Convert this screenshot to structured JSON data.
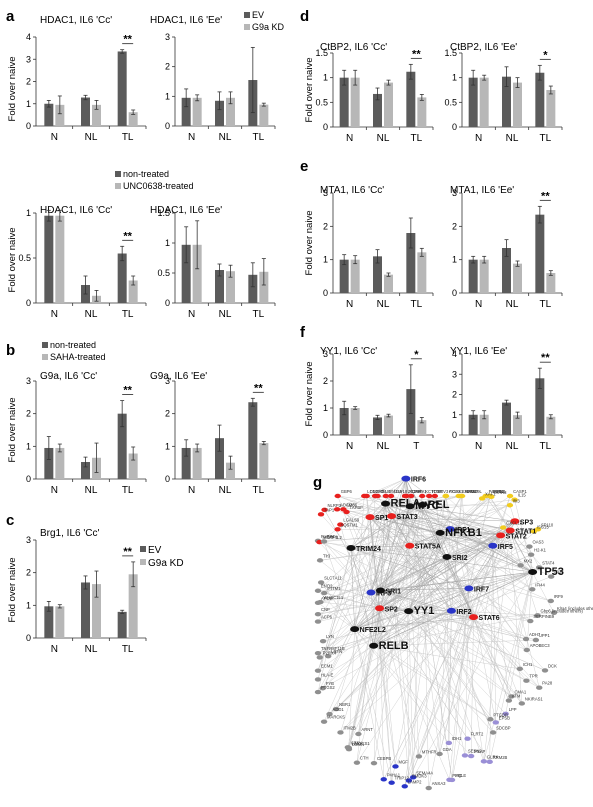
{
  "panel_letters": [
    "a",
    "b",
    "c",
    "d",
    "e",
    "f",
    "g"
  ],
  "legends": {
    "a_top": [
      "EV",
      "G9a KD"
    ],
    "a_mid": [
      "non-treated",
      "UNC0638-treated"
    ],
    "b": [
      "non-treated",
      "SAHA-treated"
    ],
    "c": [
      "EV",
      "G9a KD"
    ]
  },
  "colors": {
    "dark": "#5b5b5b",
    "light": "#b7b7b7",
    "axis": "#333333",
    "net_red": "#e8201e",
    "net_yellow": "#f2cc1e",
    "net_blue": "#2a35c8",
    "net_purple": "#9a8fd6",
    "net_gray": "#8f8f8f",
    "net_edge": "#c4c4c4"
  },
  "chart_data": [
    {
      "id": "a1",
      "type": "bar",
      "title": "HDAC1, IL6 'Cc'",
      "ylabel": "Fold over naive",
      "categories": [
        "N",
        "NL",
        "TL"
      ],
      "ylim": [
        0,
        4
      ],
      "yticks": [
        0,
        1,
        2,
        3,
        4
      ],
      "series": [
        {
          "name": "EV",
          "values": [
            1.0,
            1.28,
            3.35
          ],
          "err": [
            0.15,
            0.1,
            0.08
          ]
        },
        {
          "name": "G9a KD",
          "values": [
            0.95,
            0.95,
            0.62
          ],
          "err": [
            0.4,
            0.2,
            0.1
          ]
        }
      ],
      "sig": [
        "**"
      ]
    },
    {
      "id": "a2",
      "type": "bar",
      "title": "HDAC1, IL6 'Ee'",
      "ylabel": "",
      "categories": [
        "N",
        "NL",
        "TL"
      ],
      "ylim": [
        0,
        3
      ],
      "yticks": [
        0,
        1,
        2,
        3
      ],
      "series": [
        {
          "name": "EV",
          "values": [
            0.95,
            0.85,
            1.55
          ],
          "err": [
            0.3,
            0.3,
            1.1
          ]
        },
        {
          "name": "G9a KD",
          "values": [
            0.95,
            0.95,
            0.72
          ],
          "err": [
            0.1,
            0.2,
            0.05
          ]
        }
      ],
      "sig": [
        ""
      ]
    },
    {
      "id": "a3",
      "type": "bar",
      "title": "HDAC1, IL6 'Cc'",
      "ylabel": "Fold over naive",
      "categories": [
        "N",
        "NL",
        "TL"
      ],
      "ylim": [
        0,
        1
      ],
      "yticks": [
        0,
        0.5,
        1
      ],
      "series": [
        {
          "name": "non-treated",
          "values": [
            0.97,
            0.2,
            0.55
          ],
          "err": [
            0.06,
            0.1,
            0.08
          ]
        },
        {
          "name": "UNC0638-treated",
          "values": [
            0.97,
            0.08,
            0.25
          ],
          "err": [
            0.06,
            0.06,
            0.05
          ]
        }
      ],
      "sig": [
        "**"
      ]
    },
    {
      "id": "a4",
      "type": "bar",
      "title": "HDAC1, IL6 'Ee'",
      "ylabel": "",
      "categories": [
        "N",
        "NL",
        "TL"
      ],
      "ylim": [
        0,
        1.5
      ],
      "yticks": [
        0,
        0.5,
        1,
        1.5
      ],
      "series": [
        {
          "name": "non-treated",
          "values": [
            0.97,
            0.55,
            0.47
          ],
          "err": [
            0.3,
            0.1,
            0.2
          ]
        },
        {
          "name": "UNC0638-treated",
          "values": [
            0.97,
            0.53,
            0.52
          ],
          "err": [
            0.4,
            0.1,
            0.22
          ]
        }
      ],
      "sig": [
        ""
      ]
    },
    {
      "id": "b1",
      "type": "bar",
      "title": "G9a, IL6 'Cc'",
      "ylabel": "Fold over naive",
      "categories": [
        "N",
        "NL",
        "TL"
      ],
      "ylim": [
        0,
        3
      ],
      "yticks": [
        0,
        1,
        2,
        3
      ],
      "series": [
        {
          "name": "non-treated",
          "values": [
            0.95,
            0.52,
            2.0
          ],
          "err": [
            0.35,
            0.15,
            0.4
          ]
        },
        {
          "name": "SAHA-treated",
          "values": [
            0.95,
            0.65,
            0.78
          ],
          "err": [
            0.12,
            0.45,
            0.2
          ]
        }
      ],
      "sig": [
        "**"
      ]
    },
    {
      "id": "b2",
      "type": "bar",
      "title": "G9a, IL6 'Ee'",
      "ylabel": "",
      "categories": [
        "N",
        "NL",
        "TL"
      ],
      "ylim": [
        0,
        3
      ],
      "yticks": [
        0,
        1,
        2,
        3
      ],
      "series": [
        {
          "name": "non-treated",
          "values": [
            0.95,
            1.25,
            2.35
          ],
          "err": [
            0.25,
            0.4,
            0.12
          ]
        },
        {
          "name": "SAHA-treated",
          "values": [
            0.95,
            0.5,
            1.1
          ],
          "err": [
            0.12,
            0.2,
            0.05
          ]
        }
      ],
      "sig": [
        "**"
      ]
    },
    {
      "id": "c1",
      "type": "bar",
      "title": "Brg1, IL6 'Cc'",
      "ylabel": "Fold over naive",
      "categories": [
        "N",
        "NL",
        "TL"
      ],
      "ylim": [
        0,
        3
      ],
      "yticks": [
        0,
        1,
        2,
        3
      ],
      "series": [
        {
          "name": "EV",
          "values": [
            0.97,
            1.7,
            0.8
          ],
          "err": [
            0.15,
            0.2,
            0.05
          ]
        },
        {
          "name": "G9a KD",
          "values": [
            0.97,
            1.65,
            1.95
          ],
          "err": [
            0.05,
            0.4,
            0.38
          ]
        }
      ],
      "sig": [
        "**"
      ]
    },
    {
      "id": "d1",
      "type": "bar",
      "title": "CtBP2, IL6 'Cc'",
      "ylabel": "Fold over naive",
      "categories": [
        "N",
        "NL",
        "TL"
      ],
      "ylim": [
        0,
        1.5
      ],
      "yticks": [
        0,
        0.5,
        1,
        1.5
      ],
      "series": [
        {
          "name": "",
          "values": [
            1.0,
            0.67,
            1.12
          ],
          "err": [
            0.15,
            0.12,
            0.15
          ]
        },
        {
          "name": "",
          "values": [
            1.0,
            0.9,
            0.6
          ],
          "err": [
            0.15,
            0.05,
            0.06
          ]
        }
      ],
      "sig": [
        "**"
      ]
    },
    {
      "id": "d2",
      "type": "bar",
      "title": "CtBP2, IL6 'Ee'",
      "ylabel": "",
      "categories": [
        "N",
        "NL",
        "TL"
      ],
      "ylim": [
        0,
        1.5
      ],
      "yticks": [
        0,
        0.5,
        1,
        1.5
      ],
      "series": [
        {
          "name": "",
          "values": [
            1.0,
            1.02,
            1.1
          ],
          "err": [
            0.15,
            0.2,
            0.15
          ]
        },
        {
          "name": "",
          "values": [
            1.0,
            0.9,
            0.75
          ],
          "err": [
            0.05,
            0.1,
            0.08
          ]
        }
      ],
      "sig": [
        "*"
      ]
    },
    {
      "id": "e1",
      "type": "bar",
      "title": "MTA1, IL6 'Cc'",
      "ylabel": "Fold over naive",
      "categories": [
        "N",
        "NL",
        "TL"
      ],
      "ylim": [
        0,
        3
      ],
      "yticks": [
        0,
        1,
        2,
        3
      ],
      "series": [
        {
          "name": "",
          "values": [
            1.0,
            1.1,
            1.8
          ],
          "err": [
            0.15,
            0.2,
            0.45
          ]
        },
        {
          "name": "",
          "values": [
            1.0,
            0.55,
            1.22
          ],
          "err": [
            0.12,
            0.05,
            0.12
          ]
        }
      ],
      "sig": [
        ""
      ]
    },
    {
      "id": "e2",
      "type": "bar",
      "title": "MTA1, IL6 'Ee'",
      "ylabel": "",
      "categories": [
        "N",
        "NL",
        "TL"
      ],
      "ylim": [
        0,
        3
      ],
      "yticks": [
        0,
        1,
        2,
        3
      ],
      "series": [
        {
          "name": "",
          "values": [
            1.0,
            1.35,
            2.35
          ],
          "err": [
            0.1,
            0.25,
            0.25
          ]
        },
        {
          "name": "",
          "values": [
            1.0,
            0.88,
            0.6
          ],
          "err": [
            0.1,
            0.08,
            0.07
          ]
        }
      ],
      "sig": [
        "**"
      ]
    },
    {
      "id": "f1",
      "type": "bar",
      "title": "YY1, IL6 'Cc'",
      "ylabel": "Fold over naive",
      "categories": [
        "N",
        "NL",
        "T"
      ],
      "ylim": [
        0,
        3
      ],
      "yticks": [
        0,
        1,
        2,
        3
      ],
      "series": [
        {
          "name": "",
          "values": [
            1.0,
            0.65,
            1.7
          ],
          "err": [
            0.25,
            0.08,
            0.9
          ]
        },
        {
          "name": "",
          "values": [
            1.0,
            0.72,
            0.55
          ],
          "err": [
            0.05,
            0.05,
            0.1
          ]
        }
      ],
      "sig": [
        "*"
      ]
    },
    {
      "id": "f2",
      "type": "bar",
      "title": "YY1, IL6 'Ee'",
      "ylabel": "",
      "categories": [
        "N",
        "NL",
        "TL"
      ],
      "ylim": [
        0,
        4
      ],
      "yticks": [
        0,
        1,
        2,
        3,
        4
      ],
      "series": [
        {
          "name": "",
          "values": [
            1.0,
            1.6,
            2.8
          ],
          "err": [
            0.2,
            0.12,
            0.5
          ]
        },
        {
          "name": "",
          "values": [
            1.0,
            0.98,
            0.9
          ],
          "err": [
            0.2,
            0.15,
            0.1
          ]
        }
      ],
      "sig": [
        "**"
      ]
    }
  ],
  "network": {
    "hubs": [
      "TP53",
      "YY1",
      "MYC",
      "RELB",
      "REL",
      "RELA",
      "NFKB1",
      "NFE2L2",
      "STAT5A",
      "STAT3",
      "STAT1",
      "STAT6",
      "STAT2",
      "SP1",
      "SP3",
      "SP2",
      "IRF1",
      "IRF2",
      "IRF3",
      "IRF5",
      "IRF6",
      "IRF7",
      "TRIM24",
      "SRI1",
      "SRI2"
    ],
    "peripheral": [
      "SERPINB9",
      "UPP1",
      "ADH7",
      "APOBEC3",
      "ICH1",
      "DCK",
      "TPR",
      "PA28",
      "ATM",
      "CMA1",
      "NKIRAS1",
      "PTGDR",
      "SDCBP",
      "LPP",
      "EPSB",
      "RRM2B",
      "GLRX",
      "FLRT2",
      "SESN2",
      "PSAP",
      "PPIC",
      "SQLE",
      "IDH1",
      "ANXA3",
      "GDA",
      "SEMA4A",
      "MTHFR",
      "RMDK3",
      "MGF",
      "LAMP2",
      "TRIP12",
      "P4HA1",
      "CTH",
      "CEBPB",
      "ARNT",
      "CTSV",
      "LGMN",
      "ITM2B",
      "HMGCS1",
      "MARCKS",
      "NBR1",
      "ADD1",
      "PTGS2",
      "FYB",
      "HLA-E",
      "ECM1",
      "LRFN",
      "P2RX4",
      "TNFRSF11B",
      "LYN",
      "ACP6",
      "CNP",
      "APOE",
      "IFITM1",
      "WHSC1L1",
      "ENO2",
      "SLC7A11",
      "Tlr3",
      "FURIN",
      "MORF4L2",
      "CHP1",
      "ADAM8",
      "SQSTM1",
      "LGALS9",
      "NLRP3",
      "TAP1",
      "TAPBP",
      "CD36",
      "GBP6",
      "LCN2",
      "DDX60",
      "Pdf1",
      "OAS2",
      "Phf11a",
      "USP18",
      "ADAR",
      "PNP",
      "ZC3HAV1",
      "KCTD12",
      "RTP4",
      "ETV3",
      "ITGA5",
      "ACOX1",
      "SAMD4",
      "TDRD7",
      "SAMD9L",
      "PARP14",
      "PHF11",
      "IRAK3",
      "XAF1",
      "Ifit3",
      "CASP1",
      "CD40",
      "IL15",
      "CXCL10",
      "SP110",
      "ISG15",
      "H2-K1",
      "OAS3",
      "MX2",
      "STAT4",
      "IFI35",
      "IFI44",
      "IRF9",
      "Gbp6 (includes others)",
      "Klra4 (includes others)"
    ]
  }
}
